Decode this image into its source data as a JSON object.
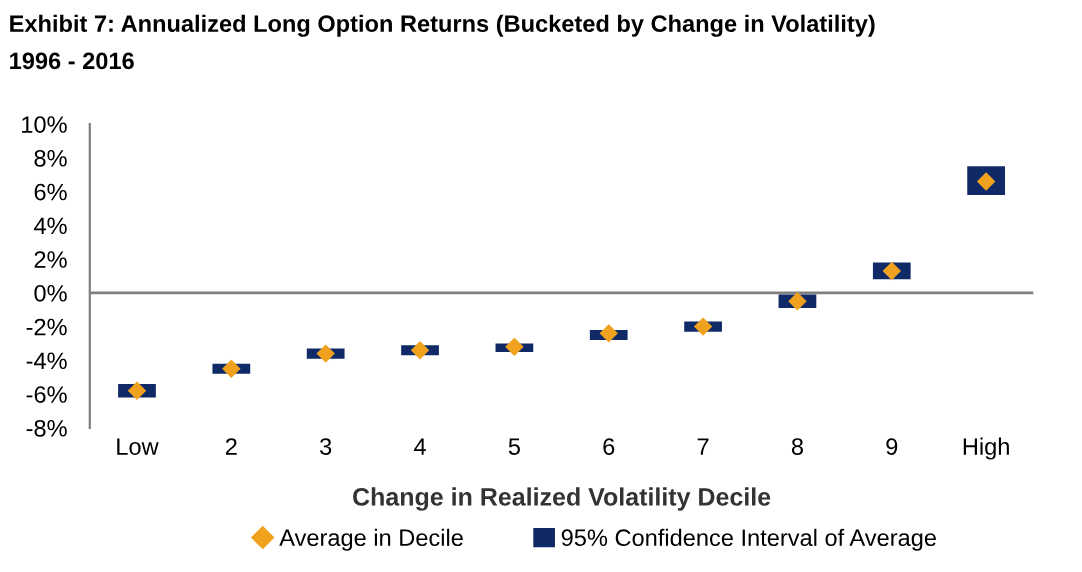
{
  "chart_data": {
    "type": "bar",
    "title": "Exhibit 7: Annualized Long Option Returns (Bucketed by Change in Volatility)",
    "subtitle": "1996 - 2016",
    "xlabel": "Change in Realized Volatility Decile",
    "categories": [
      "Low",
      "2",
      "3",
      "4",
      "5",
      "6",
      "7",
      "8",
      "9",
      "High"
    ],
    "series": [
      {
        "name": "95% Confidence Interval of Average",
        "color": "#0f2a66",
        "base": [
          -6.2,
          -4.8,
          -3.9,
          -3.7,
          -3.5,
          -2.8,
          -2.3,
          -0.9,
          0.8,
          5.8
        ],
        "values": [
          0.8,
          0.6,
          0.6,
          0.6,
          0.5,
          0.6,
          0.6,
          0.8,
          1.0,
          1.7
        ]
      },
      {
        "name": "Average in Decile",
        "type": "scatter",
        "marker": "diamond",
        "color": "#f0a21e",
        "x": [
          "Low",
          "2",
          "3",
          "4",
          "5",
          "6",
          "7",
          "8",
          "9",
          "High"
        ],
        "values": [
          -5.8,
          -4.5,
          -3.6,
          -3.4,
          -3.2,
          -2.4,
          -2.0,
          -0.5,
          1.3,
          6.6
        ]
      }
    ],
    "ylim": [
      -8,
      10
    ],
    "yticks": [
      {
        "value": -8,
        "label": "-8%"
      },
      {
        "value": -6,
        "label": "-6%"
      },
      {
        "value": -4,
        "label": "-4%"
      },
      {
        "value": -2,
        "label": "-2%"
      },
      {
        "value": 0,
        "label": "0%"
      },
      {
        "value": 2,
        "label": "2%"
      },
      {
        "value": 4,
        "label": "4%"
      },
      {
        "value": 6,
        "label": "6%"
      },
      {
        "value": 8,
        "label": "8%"
      },
      {
        "value": 10,
        "label": "10%"
      }
    ],
    "ref_lines": [
      {
        "axis": "y",
        "value": 0,
        "color": "#808080"
      }
    ],
    "grid": false,
    "legend": "bottom"
  }
}
